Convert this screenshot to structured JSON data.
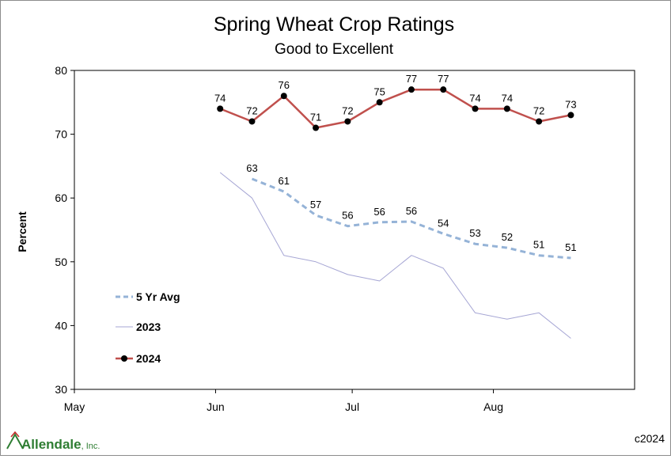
{
  "chart_data": {
    "type": "line",
    "title": "Spring Wheat Crop Ratings",
    "subtitle": "Good to Excellent",
    "ylabel": "Percent",
    "xlabel": "",
    "ylim": [
      30,
      80
    ],
    "yticks": [
      30,
      40,
      50,
      60,
      70,
      80
    ],
    "xlim": [
      "May 1",
      "Sep 1"
    ],
    "xticks": [
      {
        "label": "May",
        "date": "May 1"
      },
      {
        "label": "Jun",
        "date": "Jun 1"
      },
      {
        "label": "Jul",
        "date": "Jul 1"
      },
      {
        "label": "Aug",
        "date": "Aug 1"
      }
    ],
    "grid": false,
    "legend_position": "left",
    "series": [
      {
        "name": "5 Yr Avg",
        "style": "dashed",
        "color": "#95B3D7",
        "x": [
          "Jun 9",
          "Jun 16",
          "Jun 23",
          "Jun 30",
          "Jul 7",
          "Jul 14",
          "Jul 21",
          "Jul 28",
          "Aug 4",
          "Aug 11",
          "Aug 18"
        ],
        "y": [
          63,
          61,
          57.3,
          55.6,
          56.2,
          56.3,
          54.4,
          52.8,
          52.2,
          51,
          50.6
        ],
        "labels": [
          "63",
          "61",
          "57",
          "56",
          "56",
          "56",
          "54",
          "53",
          "52",
          "51",
          "51"
        ]
      },
      {
        "name": "2023",
        "style": "solid-thin",
        "color": "#A6A6D4",
        "x": [
          "Jun 2",
          "Jun 9",
          "Jun 16",
          "Jun 23",
          "Jun 30",
          "Jul 7",
          "Jul 14",
          "Jul 21",
          "Jul 28",
          "Aug 4",
          "Aug 11",
          "Aug 18"
        ],
        "y": [
          64,
          60,
          51,
          50,
          48,
          47,
          51,
          49,
          42,
          41,
          42,
          38
        ]
      },
      {
        "name": "2024",
        "style": "solid-markers",
        "color": "#C0504D",
        "marker_color": "#000000",
        "x": [
          "Jun 2",
          "Jun 9",
          "Jun 16",
          "Jun 23",
          "Jun 30",
          "Jul 7",
          "Jul 14",
          "Jul 21",
          "Jul 28",
          "Aug 4",
          "Aug 11",
          "Aug 18"
        ],
        "y": [
          74,
          72,
          76,
          71,
          72,
          75,
          77,
          77,
          74,
          74,
          72,
          73
        ],
        "labels": [
          "74",
          "72",
          "76",
          "71",
          "72",
          "75",
          "77",
          "77",
          "74",
          "74",
          "72",
          "73"
        ]
      }
    ]
  },
  "branding": {
    "logo_text": "Allendale",
    "logo_suffix": ", Inc.",
    "logo_color": "#2E7D32",
    "logo_accent": "#C62828",
    "copyright": "c2024"
  }
}
